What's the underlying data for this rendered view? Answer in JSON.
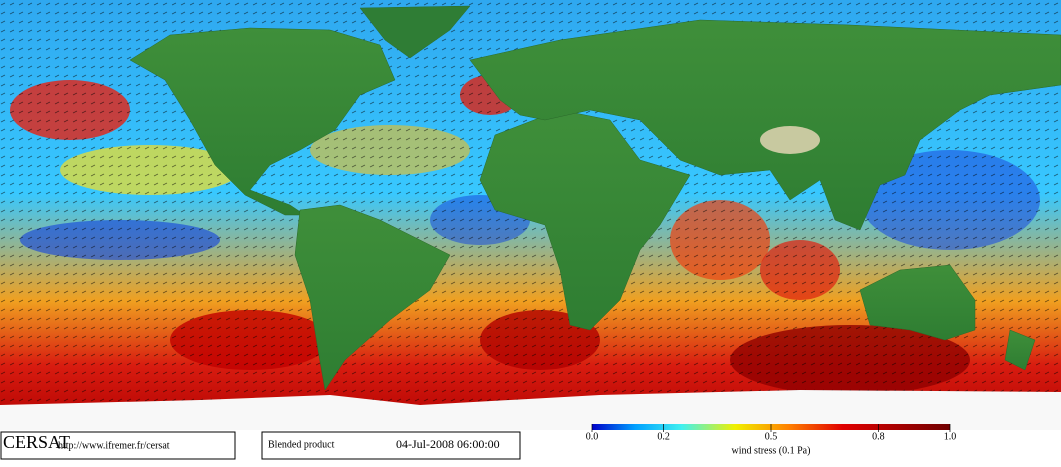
{
  "footer": {
    "logo": "CERSAT",
    "url": "http://www.ifremer.fr/cersat",
    "product": "Blended product",
    "timestamp": "04-Jul-2008 06:00:00"
  },
  "colorbar": {
    "lim": [
      0,
      1
    ],
    "ticks": [
      {
        "value": 0,
        "label": "0.0"
      },
      0.2,
      0.5,
      0.8,
      {
        "value": 1,
        "label": "1.0"
      }
    ],
    "label": "wind stress (0.1 Pa)"
  }
}
